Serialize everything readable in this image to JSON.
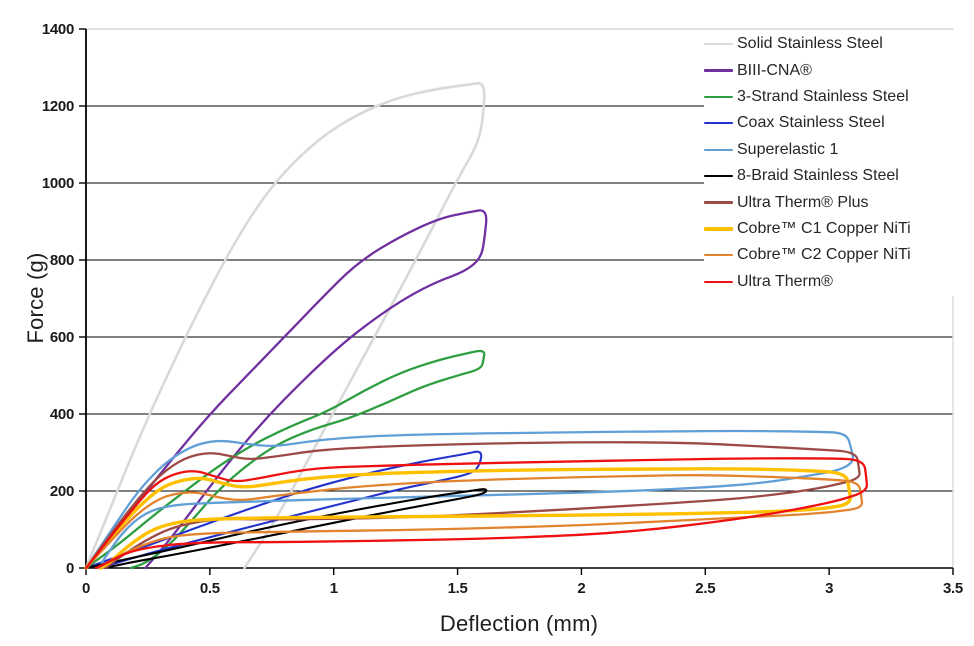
{
  "chart_data": {
    "type": "line",
    "title": "",
    "xlabel": "Deflection (mm)",
    "ylabel": "Force (g)",
    "xlim": [
      0,
      3.5
    ],
    "ylim": [
      0,
      1400
    ],
    "x_ticks": [
      0,
      0.5,
      1,
      1.5,
      2,
      2.5,
      3,
      3.5
    ],
    "y_ticks": [
      0,
      200,
      400,
      600,
      800,
      1000,
      1200,
      1400
    ],
    "grid": "horizontal",
    "grid_color": "#000000",
    "border_color": "#d9d9d9",
    "axis_color": "#000000",
    "legend_position": "top-right",
    "series": [
      {
        "name": "Solid Stainless Steel",
        "color": "#d9d9d9",
        "width": 2.6,
        "points": [
          [
            0,
            0
          ],
          [
            0.08,
            125
          ],
          [
            0.17,
            270
          ],
          [
            0.26,
            405
          ],
          [
            0.35,
            530
          ],
          [
            0.44,
            650
          ],
          [
            0.56,
            800
          ],
          [
            0.68,
            930
          ],
          [
            0.8,
            1030
          ],
          [
            0.95,
            1120
          ],
          [
            1.1,
            1180
          ],
          [
            1.25,
            1220
          ],
          [
            1.4,
            1243
          ],
          [
            1.55,
            1256
          ],
          [
            1.61,
            1262
          ],
          [
            1.605,
            1180
          ],
          [
            1.585,
            1105
          ],
          [
            1.5,
            1010
          ],
          [
            1.38,
            860
          ],
          [
            1.24,
            690
          ],
          [
            1.08,
            500
          ],
          [
            0.92,
            310
          ],
          [
            0.78,
            140
          ],
          [
            0.68,
            40
          ],
          [
            0.64,
            0
          ]
        ]
      },
      {
        "name": "BIII-CNA®",
        "color": "#7030a0",
        "width": 2.3,
        "points": [
          [
            0,
            0
          ],
          [
            0.1,
            80
          ],
          [
            0.22,
            180
          ],
          [
            0.35,
            285
          ],
          [
            0.5,
            400
          ],
          [
            0.65,
            500
          ],
          [
            0.8,
            600
          ],
          [
            0.95,
            700
          ],
          [
            1.09,
            790
          ],
          [
            1.25,
            855
          ],
          [
            1.42,
            907
          ],
          [
            1.55,
            925
          ],
          [
            1.62,
            932
          ],
          [
            1.61,
            860
          ],
          [
            1.595,
            805
          ],
          [
            1.53,
            770
          ],
          [
            1.42,
            745
          ],
          [
            1.3,
            705
          ],
          [
            1.17,
            650
          ],
          [
            1.03,
            580
          ],
          [
            0.88,
            490
          ],
          [
            0.72,
            385
          ],
          [
            0.57,
            270
          ],
          [
            0.44,
            160
          ],
          [
            0.34,
            75
          ],
          [
            0.26,
            15
          ],
          [
            0.24,
            0
          ]
        ]
      },
      {
        "name": "3-Strand Stainless Steel",
        "color": "#2e9e41",
        "width": 2.3,
        "points": [
          [
            0,
            0
          ],
          [
            0.12,
            55
          ],
          [
            0.25,
            125
          ],
          [
            0.4,
            200
          ],
          [
            0.55,
            272
          ],
          [
            0.7,
            330
          ],
          [
            0.85,
            375
          ],
          [
            0.98,
            408
          ],
          [
            1.12,
            460
          ],
          [
            1.27,
            508
          ],
          [
            1.42,
            540
          ],
          [
            1.54,
            558
          ],
          [
            1.61,
            567
          ],
          [
            1.605,
            540
          ],
          [
            1.595,
            517
          ],
          [
            1.5,
            500
          ],
          [
            1.36,
            472
          ],
          [
            1.21,
            428
          ],
          [
            1.06,
            388
          ],
          [
            0.92,
            362
          ],
          [
            0.78,
            325
          ],
          [
            0.65,
            268
          ],
          [
            0.53,
            200
          ],
          [
            0.43,
            125
          ],
          [
            0.33,
            55
          ],
          [
            0.24,
            12
          ],
          [
            0.18,
            0
          ]
        ]
      },
      {
        "name": "Coax Stainless Steel",
        "color": "#2433cc",
        "width": 2.1,
        "points": [
          [
            0,
            0
          ],
          [
            0.15,
            35
          ],
          [
            0.3,
            70
          ],
          [
            0.45,
            106
          ],
          [
            0.62,
            145
          ],
          [
            0.8,
            185
          ],
          [
            0.97,
            218
          ],
          [
            1.12,
            243
          ],
          [
            1.27,
            265
          ],
          [
            1.42,
            284
          ],
          [
            1.53,
            296
          ],
          [
            1.6,
            306
          ],
          [
            1.59,
            268
          ],
          [
            1.56,
            246
          ],
          [
            1.44,
            228
          ],
          [
            1.28,
            207
          ],
          [
            1.1,
            178
          ],
          [
            0.9,
            146
          ],
          [
            0.7,
            113
          ],
          [
            0.5,
            80
          ],
          [
            0.3,
            46
          ],
          [
            0.14,
            17
          ],
          [
            0.06,
            0
          ]
        ]
      },
      {
        "name": "Superelastic 1",
        "color": "#619fd7",
        "width": 2.3,
        "points": [
          [
            0,
            0
          ],
          [
            0.1,
            95
          ],
          [
            0.2,
            192
          ],
          [
            0.3,
            262
          ],
          [
            0.38,
            300
          ],
          [
            0.46,
            324
          ],
          [
            0.55,
            332
          ],
          [
            0.65,
            322
          ],
          [
            0.76,
            315
          ],
          [
            0.88,
            327
          ],
          [
            1.0,
            336
          ],
          [
            1.2,
            344
          ],
          [
            1.5,
            349
          ],
          [
            1.9,
            352
          ],
          [
            2.3,
            355
          ],
          [
            2.7,
            356
          ],
          [
            2.95,
            354
          ],
          [
            3.07,
            351
          ],
          [
            3.09,
            310
          ],
          [
            3.1,
            275
          ],
          [
            3.04,
            254
          ],
          [
            2.94,
            242
          ],
          [
            2.74,
            221
          ],
          [
            2.5,
            209
          ],
          [
            2.2,
            200
          ],
          [
            1.9,
            194
          ],
          [
            1.6,
            189
          ],
          [
            1.3,
            184
          ],
          [
            1.0,
            179
          ],
          [
            0.7,
            173
          ],
          [
            0.5,
            169
          ],
          [
            0.35,
            164
          ],
          [
            0.24,
            145
          ],
          [
            0.15,
            95
          ],
          [
            0.08,
            30
          ],
          [
            0.05,
            0
          ]
        ]
      },
      {
        "name": "8-Braid Stainless Steel",
        "color": "#000000",
        "width": 2.1,
        "points": [
          [
            0,
            0
          ],
          [
            0.2,
            28
          ],
          [
            0.4,
            56
          ],
          [
            0.6,
            86
          ],
          [
            0.8,
            114
          ],
          [
            1.0,
            140
          ],
          [
            1.2,
            164
          ],
          [
            1.4,
            186
          ],
          [
            1.55,
            200
          ],
          [
            1.62,
            207
          ],
          [
            1.61,
            193
          ],
          [
            1.5,
            179
          ],
          [
            1.35,
            161
          ],
          [
            1.15,
            137
          ],
          [
            0.95,
            111
          ],
          [
            0.75,
            85
          ],
          [
            0.55,
            59
          ],
          [
            0.35,
            34
          ],
          [
            0.15,
            11
          ],
          [
            0.08,
            0
          ]
        ]
      },
      {
        "name": "Ultra Therm® Plus",
        "color": "#9c4a45",
        "width": 2.3,
        "points": [
          [
            0,
            0
          ],
          [
            0.1,
            88
          ],
          [
            0.2,
            172
          ],
          [
            0.3,
            244
          ],
          [
            0.4,
            287
          ],
          [
            0.5,
            301
          ],
          [
            0.58,
            291
          ],
          [
            0.66,
            281
          ],
          [
            0.78,
            291
          ],
          [
            0.9,
            303
          ],
          [
            1.05,
            311
          ],
          [
            1.3,
            318
          ],
          [
            1.6,
            323
          ],
          [
            2.0,
            327
          ],
          [
            2.4,
            326
          ],
          [
            2.7,
            317
          ],
          [
            2.95,
            308
          ],
          [
            3.11,
            302
          ],
          [
            3.12,
            260
          ],
          [
            3.125,
            232
          ],
          [
            3.0,
            212
          ],
          [
            2.85,
            196
          ],
          [
            2.65,
            181
          ],
          [
            2.45,
            172
          ],
          [
            2.1,
            158
          ],
          [
            1.8,
            147
          ],
          [
            1.5,
            137
          ],
          [
            1.2,
            130
          ],
          [
            0.95,
            127
          ],
          [
            0.7,
            126
          ],
          [
            0.55,
            128
          ],
          [
            0.44,
            119
          ],
          [
            0.34,
            103
          ],
          [
            0.24,
            72
          ],
          [
            0.14,
            30
          ],
          [
            0.08,
            0
          ]
        ]
      },
      {
        "name": "Cobre™ C1 Copper NiTi",
        "color": "#ffc000",
        "width": 3.4,
        "points": [
          [
            0,
            0
          ],
          [
            0.1,
            78
          ],
          [
            0.2,
            152
          ],
          [
            0.3,
            208
          ],
          [
            0.38,
            228
          ],
          [
            0.47,
            235
          ],
          [
            0.56,
            218
          ],
          [
            0.64,
            208
          ],
          [
            0.76,
            220
          ],
          [
            0.9,
            233
          ],
          [
            1.1,
            243
          ],
          [
            1.4,
            250
          ],
          [
            1.8,
            255
          ],
          [
            2.2,
            257
          ],
          [
            2.6,
            258
          ],
          [
            2.9,
            254
          ],
          [
            3.07,
            247
          ],
          [
            3.08,
            205
          ],
          [
            3.09,
            168
          ],
          [
            3.0,
            155
          ],
          [
            2.8,
            147
          ],
          [
            2.5,
            142
          ],
          [
            2.2,
            139
          ],
          [
            1.8,
            136
          ],
          [
            1.4,
            134
          ],
          [
            1.0,
            132
          ],
          [
            0.7,
            130
          ],
          [
            0.5,
            127
          ],
          [
            0.38,
            121
          ],
          [
            0.27,
            102
          ],
          [
            0.17,
            58
          ],
          [
            0.1,
            16
          ],
          [
            0.06,
            0
          ]
        ]
      },
      {
        "name": "Cobre™ C2 Copper NiTi",
        "color": "#e2832d",
        "width": 2.3,
        "points": [
          [
            0,
            0
          ],
          [
            0.1,
            70
          ],
          [
            0.2,
            138
          ],
          [
            0.3,
            183
          ],
          [
            0.38,
            195
          ],
          [
            0.45,
            197
          ],
          [
            0.55,
            181
          ],
          [
            0.63,
            175
          ],
          [
            0.76,
            187
          ],
          [
            0.9,
            198
          ],
          [
            1.1,
            212
          ],
          [
            1.4,
            224
          ],
          [
            1.8,
            233
          ],
          [
            2.2,
            239
          ],
          [
            2.5,
            242
          ],
          [
            2.8,
            236
          ],
          [
            3.0,
            230
          ],
          [
            3.12,
            224
          ],
          [
            3.13,
            185
          ],
          [
            3.135,
            157
          ],
          [
            3.04,
            147
          ],
          [
            2.9,
            139
          ],
          [
            2.6,
            130
          ],
          [
            2.3,
            120
          ],
          [
            2.0,
            111
          ],
          [
            1.7,
            105
          ],
          [
            1.4,
            100
          ],
          [
            1.1,
            97
          ],
          [
            0.8,
            94
          ],
          [
            0.6,
            92
          ],
          [
            0.45,
            89
          ],
          [
            0.32,
            80
          ],
          [
            0.2,
            52
          ],
          [
            0.1,
            20
          ],
          [
            0.05,
            0
          ]
        ]
      },
      {
        "name": "Ultra Therm®",
        "color": "#ee1111",
        "width": 2.3,
        "points": [
          [
            0,
            0
          ],
          [
            0.1,
            82
          ],
          [
            0.2,
            162
          ],
          [
            0.28,
            220
          ],
          [
            0.36,
            246
          ],
          [
            0.44,
            254
          ],
          [
            0.52,
            238
          ],
          [
            0.6,
            223
          ],
          [
            0.7,
            233
          ],
          [
            0.82,
            249
          ],
          [
            0.95,
            260
          ],
          [
            1.15,
            265
          ],
          [
            1.5,
            271
          ],
          [
            1.9,
            276
          ],
          [
            2.3,
            281
          ],
          [
            2.7,
            285
          ],
          [
            3.0,
            285
          ],
          [
            3.14,
            281
          ],
          [
            3.15,
            235
          ],
          [
            3.155,
            200
          ],
          [
            3.05,
            177
          ],
          [
            2.9,
            156
          ],
          [
            2.7,
            134
          ],
          [
            2.5,
            116
          ],
          [
            2.3,
            101
          ],
          [
            2.1,
            90
          ],
          [
            1.9,
            83
          ],
          [
            1.6,
            76
          ],
          [
            1.3,
            72
          ],
          [
            1.0,
            69
          ],
          [
            0.75,
            67
          ],
          [
            0.55,
            67
          ],
          [
            0.4,
            64
          ],
          [
            0.28,
            56
          ],
          [
            0.17,
            42
          ],
          [
            0.09,
            15
          ],
          [
            0.04,
            0
          ]
        ]
      }
    ]
  }
}
